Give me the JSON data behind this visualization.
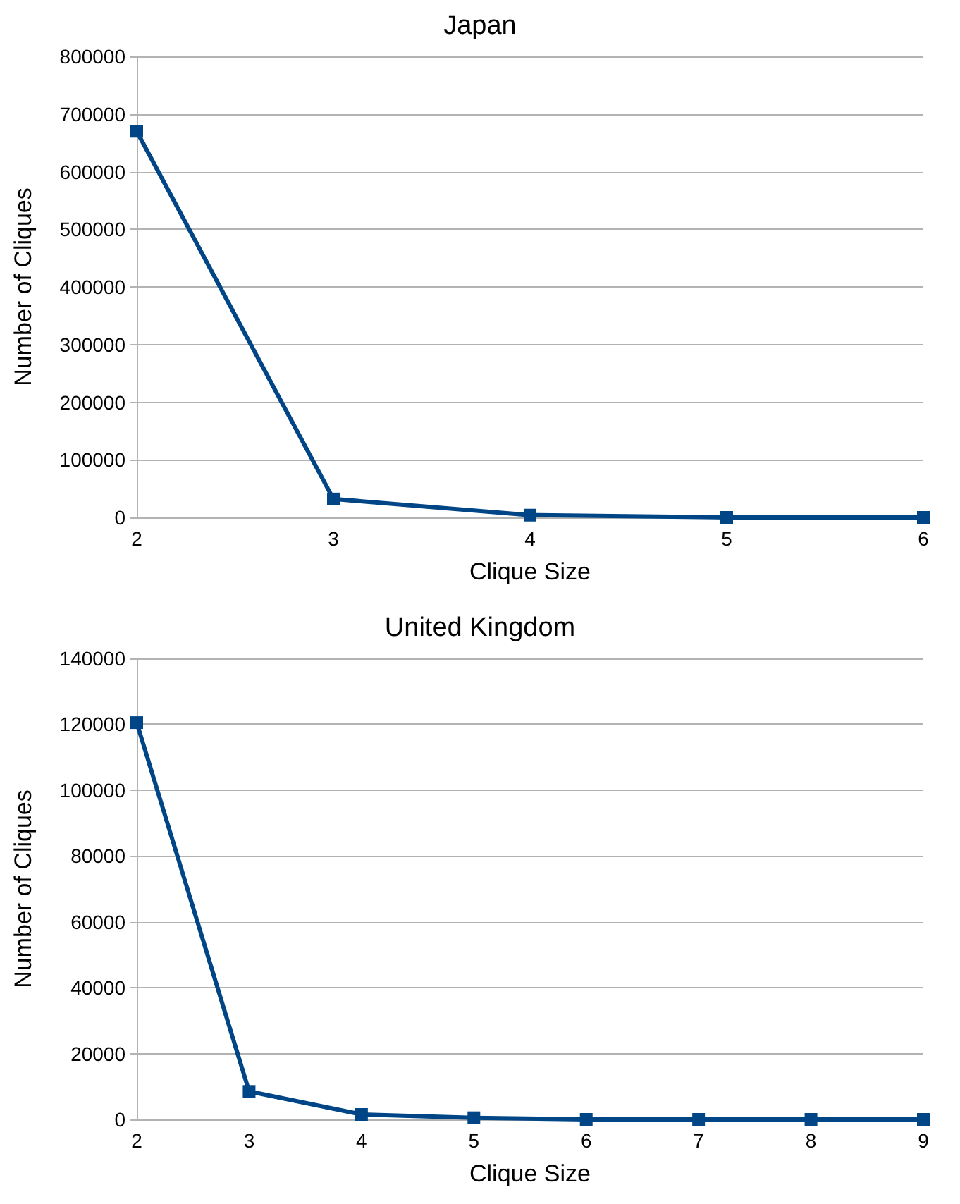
{
  "chart_data": [
    {
      "type": "line",
      "title": "Japan",
      "xlabel": "Clique Size",
      "ylabel": "Number of Cliques",
      "categories": [
        "2",
        "3",
        "4",
        "5",
        "6"
      ],
      "series": [
        {
          "color": "#004586",
          "values": [
            670000,
            32000,
            4000,
            0,
            0
          ]
        }
      ],
      "ylim": [
        0,
        800000
      ],
      "yticks": [
        0,
        100000,
        200000,
        300000,
        400000,
        500000,
        600000,
        700000,
        800000
      ],
      "grid": "y",
      "marker": "square",
      "line_style": "solid"
    },
    {
      "type": "line",
      "title": "United Kingdom",
      "xlabel": "Clique Size",
      "ylabel": "Number of Cliques",
      "categories": [
        "2",
        "3",
        "4",
        "5",
        "6",
        "7",
        "8",
        "9"
      ],
      "series": [
        {
          "color": "#004586",
          "values": [
            120500,
            8500,
            1500,
            500,
            0,
            0,
            0,
            0
          ]
        }
      ],
      "ylim": [
        0,
        140000
      ],
      "yticks": [
        0,
        20000,
        40000,
        60000,
        80000,
        100000,
        120000,
        140000
      ],
      "grid": "y",
      "marker": "square",
      "line_style": "solid"
    }
  ]
}
